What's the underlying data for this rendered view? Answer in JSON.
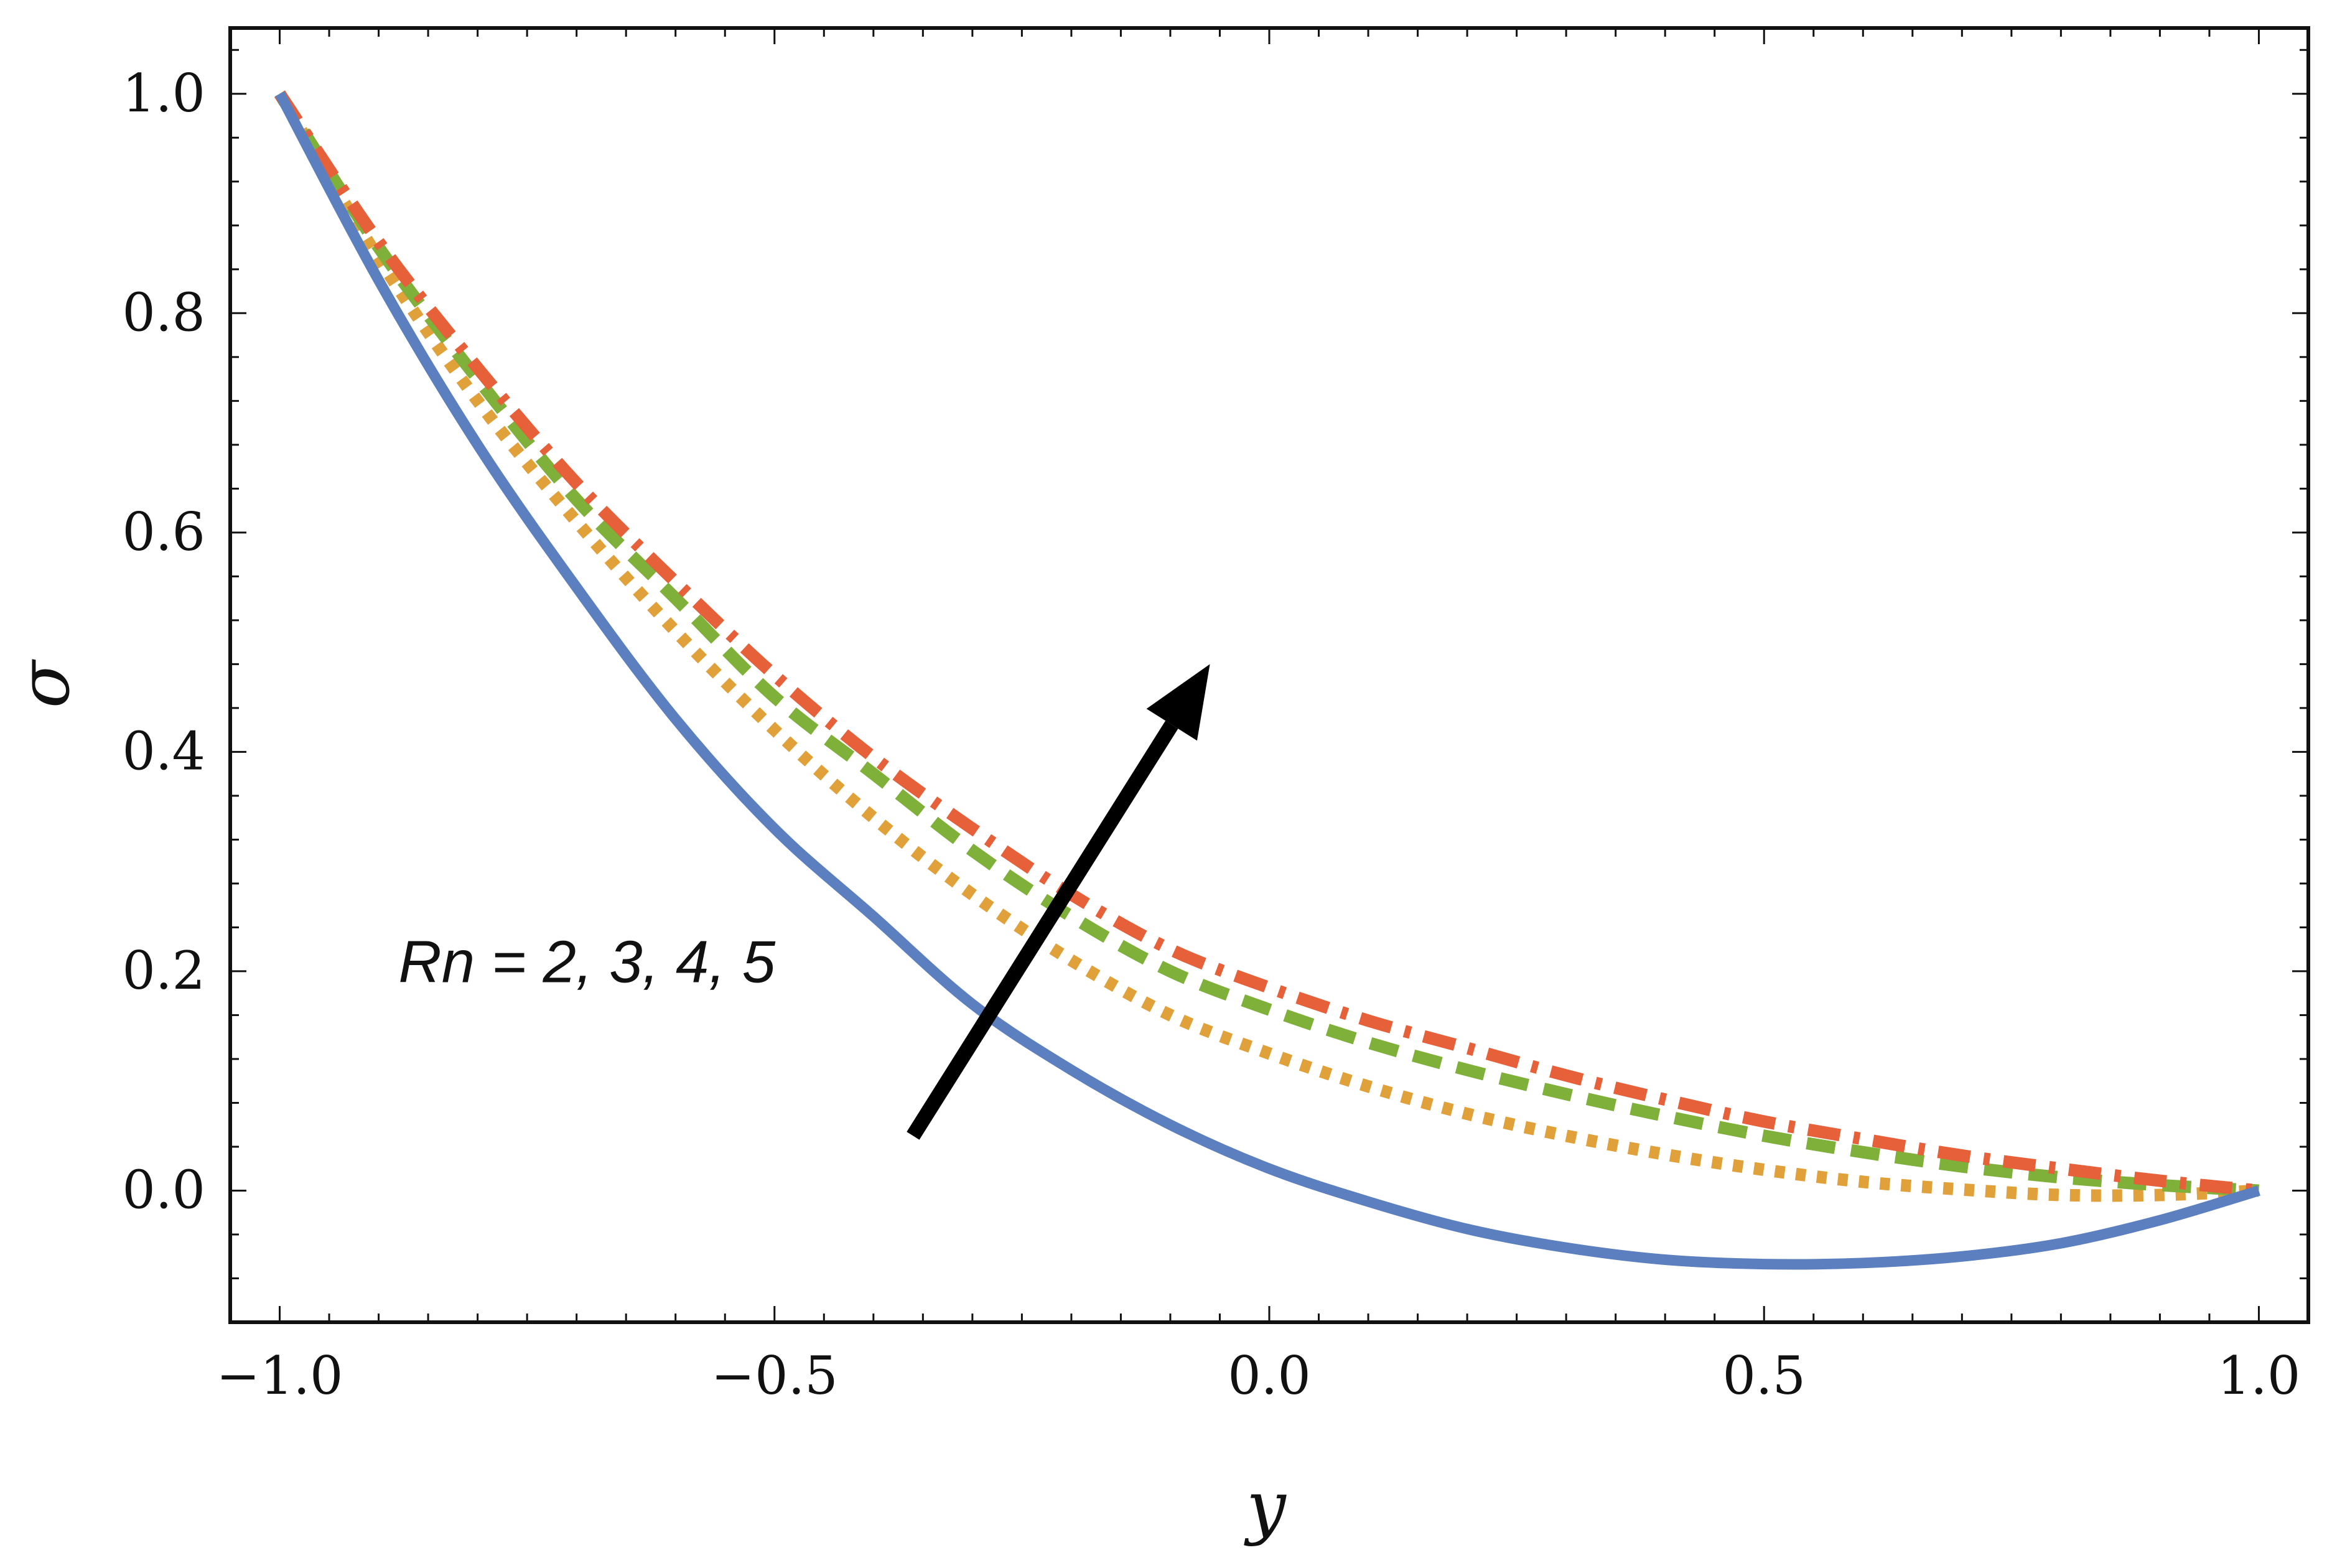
{
  "chart_data": {
    "type": "line",
    "title": "",
    "xlabel": "y",
    "ylabel": "σ",
    "xlim": [
      -1.05,
      1.05
    ],
    "ylim": [
      -0.12,
      1.06
    ],
    "grid": false,
    "x_ticks": [
      {
        "value": -1.0,
        "label": "−1.0"
      },
      {
        "value": -0.5,
        "label": "−0.5"
      },
      {
        "value": 0.0,
        "label": "0.0"
      },
      {
        "value": 0.5,
        "label": "0.5"
      },
      {
        "value": 1.0,
        "label": "1.0"
      }
    ],
    "y_ticks": [
      {
        "value": 0.0,
        "label": "0.0"
      },
      {
        "value": 0.2,
        "label": "0.2"
      },
      {
        "value": 0.4,
        "label": "0.4"
      },
      {
        "value": 0.6,
        "label": "0.6"
      },
      {
        "value": 0.8,
        "label": "0.8"
      },
      {
        "value": 1.0,
        "label": "1.0"
      }
    ],
    "x": [
      -1.0,
      -0.9,
      -0.8,
      -0.7,
      -0.6,
      -0.5,
      -0.4,
      -0.3,
      -0.2,
      -0.1,
      0.0,
      0.1,
      0.2,
      0.3,
      0.4,
      0.5,
      0.6,
      0.7,
      0.8,
      0.9,
      1.0
    ],
    "series": [
      {
        "name": "Rn = 2",
        "color": "#5b7fbf",
        "style": "solid",
        "values": [
          1.0,
          0.83,
          0.68,
          0.55,
          0.43,
          0.33,
          0.25,
          0.17,
          0.11,
          0.06,
          0.02,
          -0.01,
          -0.035,
          -0.052,
          -0.063,
          -0.067,
          -0.066,
          -0.06,
          -0.048,
          -0.027,
          0.0
        ]
      },
      {
        "name": "Rn = 3",
        "color": "#e0a13a",
        "style": "dotted",
        "values": [
          1.0,
          0.85,
          0.72,
          0.61,
          0.51,
          0.42,
          0.34,
          0.27,
          0.21,
          0.16,
          0.125,
          0.095,
          0.07,
          0.05,
          0.033,
          0.019,
          0.008,
          0.001,
          -0.004,
          -0.004,
          0.0
        ]
      },
      {
        "name": "Rn = 4",
        "color": "#7fb03a",
        "style": "dashed",
        "values": [
          1.0,
          0.86,
          0.74,
          0.63,
          0.54,
          0.45,
          0.38,
          0.31,
          0.25,
          0.2,
          0.165,
          0.135,
          0.11,
          0.088,
          0.068,
          0.05,
          0.035,
          0.022,
          0.012,
          0.005,
          0.0
        ]
      },
      {
        "name": "Rn = 5",
        "color": "#e6603a",
        "style": "dashdot",
        "values": [
          1.0,
          0.865,
          0.75,
          0.645,
          0.555,
          0.47,
          0.395,
          0.33,
          0.27,
          0.22,
          0.185,
          0.155,
          0.13,
          0.105,
          0.083,
          0.063,
          0.047,
          0.032,
          0.02,
          0.009,
          0.0
        ]
      }
    ],
    "annotations": [
      {
        "text": "Rn = 2, 3, 4, 5",
        "x": -0.88,
        "y": 0.19
      },
      {
        "arrow_from": [
          -0.36,
          0.05
        ],
        "arrow_to": [
          -0.06,
          0.48
        ]
      }
    ]
  }
}
